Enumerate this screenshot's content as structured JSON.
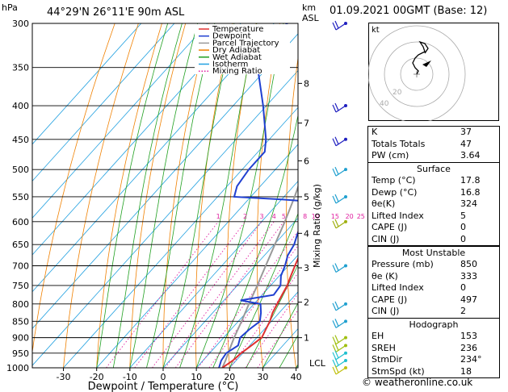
{
  "header": {
    "pressure_unit": "hPa",
    "location": "44°29'N  26°11'E  90m  ASL",
    "height_unit_line1": "km",
    "height_unit_line2": "ASL",
    "date": "01.09.2021  00GMT  (Base: 12)"
  },
  "legend": [
    {
      "name": "Temperature",
      "color": "#e03030"
    },
    {
      "name": "Dewpoint",
      "color": "#2040d0"
    },
    {
      "name": "Parcel Trajectory",
      "color": "#999999"
    },
    {
      "name": "Dry Adiabat",
      "color": "#f08000"
    },
    {
      "name": "Wet Adiabat",
      "color": "#20a020"
    },
    {
      "name": "Isotherm",
      "color": "#20a0e0"
    },
    {
      "name": "Mixing Ratio",
      "color": "#e020a0"
    }
  ],
  "chart_data": {
    "type": "line",
    "xlabel": "Dewpoint / Temperature (°C)",
    "ylabel_right": "Mixing Ratio (g/kg)",
    "x_ticks": [
      -30,
      -20,
      -10,
      0,
      10,
      20,
      30,
      40
    ],
    "pressure_levels": [
      300,
      350,
      400,
      450,
      500,
      550,
      600,
      650,
      700,
      750,
      800,
      850,
      900,
      950,
      1000
    ],
    "height_km_ticks": [
      1,
      2,
      3,
      4,
      5,
      6,
      7,
      8
    ],
    "height_km_pressure": [
      900,
      795,
      705,
      625,
      550,
      485,
      425,
      370
    ],
    "lcl_label": "LCL",
    "mixing_ratio_labels": [
      "1",
      "2",
      "3",
      "4",
      "5",
      "8",
      "10",
      "15",
      "20",
      "25"
    ],
    "mixing_ratio_values": [
      1,
      2,
      3,
      4,
      5,
      8,
      10,
      15,
      20,
      25
    ],
    "series": [
      {
        "name": "Temperature",
        "p": [
          1000,
          975,
          950,
          925,
          900,
          875,
          850,
          825,
          800,
          775,
          750,
          725,
          700,
          675,
          650,
          625,
          600,
          575,
          560,
          550,
          530,
          500,
          470,
          450,
          420,
          400,
          380,
          350,
          330,
          300
        ],
        "t": [
          17.8,
          19.0,
          19.5,
          20.5,
          21.5,
          20.5,
          19.5,
          18.0,
          17.0,
          16.0,
          15.0,
          13.5,
          12.0,
          10.5,
          9.0,
          7.0,
          5.0,
          3.5,
          4.5,
          4.0,
          0.0,
          -5.0,
          -9.0,
          -12.0,
          -17.0,
          -21.0,
          -25.0,
          -31.0,
          -36.0,
          -43.0
        ]
      },
      {
        "name": "Dewpoint",
        "p": [
          1000,
          975,
          950,
          925,
          900,
          875,
          850,
          825,
          800,
          790,
          775,
          750,
          725,
          700,
          675,
          650,
          625,
          600,
          575,
          560,
          555,
          550,
          530,
          500,
          470,
          450,
          400,
          350,
          330,
          300
        ],
        "t": [
          16.8,
          15.5,
          15.0,
          16.5,
          15.0,
          15.5,
          16.5,
          14.5,
          12.0,
          5.0,
          13.5,
          13.0,
          10.5,
          9.0,
          7.0,
          6.0,
          4.0,
          3.0,
          1.0,
          1.0,
          -10.0,
          -25.0,
          -27.0,
          -28.0,
          -28.0,
          -31.0,
          -41.0,
          -53.0,
          -59.0,
          -56.0
        ]
      },
      {
        "name": "Parcel Trajectory",
        "p": [
          1000,
          975,
          950,
          925,
          900,
          850,
          800,
          750,
          700,
          650,
          600,
          550,
          500,
          450,
          400,
          350,
          300
        ],
        "t": [
          17.8,
          16.8,
          15.6,
          14.4,
          13.2,
          11.0,
          8.5,
          6.0,
          3.2,
          0.2,
          -3.0,
          -6.8,
          -11.3,
          -16.7,
          -23.2,
          -31.0,
          -40.5
        ]
      }
    ],
    "wind_barbs": [
      {
        "p": 300,
        "color": "#2020c0"
      },
      {
        "p": 400,
        "color": "#2020c0"
      },
      {
        "p": 450,
        "color": "#2020c0"
      },
      {
        "p": 500,
        "color": "#20a0d0"
      },
      {
        "p": 550,
        "color": "#20a0d0"
      },
      {
        "p": 600,
        "color": "#a0b010"
      },
      {
        "p": 700,
        "color": "#20a0d0"
      },
      {
        "p": 800,
        "color": "#20a0d0"
      },
      {
        "p": 850,
        "color": "#20a0d0"
      },
      {
        "p": 900,
        "color": "#a0c010"
      },
      {
        "p": 925,
        "color": "#a0c010"
      },
      {
        "p": 950,
        "color": "#20c0d0"
      },
      {
        "p": 975,
        "color": "#20c0d0"
      },
      {
        "p": 1000,
        "color": "#c0c010"
      }
    ]
  },
  "hodograph": {
    "label": "kt",
    "ring_labels": [
      "40",
      "20"
    ]
  },
  "indices": {
    "rows": [
      {
        "label": "K",
        "value": "37"
      },
      {
        "label": "Totals Totals",
        "value": "47"
      },
      {
        "label": "PW (cm)",
        "value": "3.64"
      }
    ]
  },
  "surface": {
    "title": "Surface",
    "rows": [
      {
        "label": "Temp (°C)",
        "value": "17.8"
      },
      {
        "label": "Dewp (°C)",
        "value": "16.8"
      },
      {
        "label": "θe(K)",
        "value": "324"
      },
      {
        "label": "Lifted Index",
        "value": "5"
      },
      {
        "label": "CAPE (J)",
        "value": "0"
      },
      {
        "label": "CIN (J)",
        "value": "0"
      }
    ]
  },
  "most_unstable": {
    "title": "Most Unstable",
    "rows": [
      {
        "label": "Pressure (mb)",
        "value": "850"
      },
      {
        "label": "θe (K)",
        "value": "333"
      },
      {
        "label": "Lifted Index",
        "value": "0"
      },
      {
        "label": "CAPE (J)",
        "value": "497"
      },
      {
        "label": "CIN (J)",
        "value": "2"
      }
    ]
  },
  "hodo_panel": {
    "title": "Hodograph",
    "rows": [
      {
        "label": "EH",
        "value": "153"
      },
      {
        "label": "SREH",
        "value": "236"
      },
      {
        "label": "StmDir",
        "value": "234°"
      },
      {
        "label": "StmSpd (kt)",
        "value": "18"
      }
    ]
  },
  "credit": "© weatheronline.co.uk"
}
